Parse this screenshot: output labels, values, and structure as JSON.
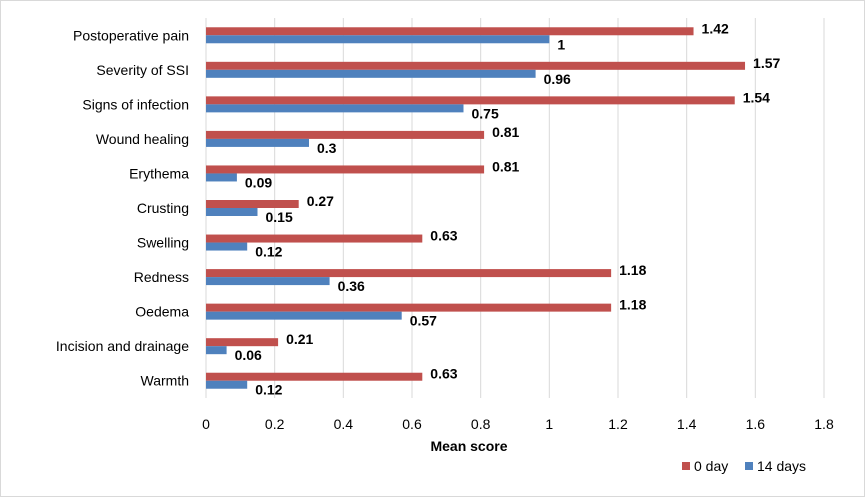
{
  "chart_data": {
    "type": "bar",
    "orientation": "horizontal",
    "title": "",
    "xlabel": "Mean score",
    "ylabel": "",
    "xlim": [
      0,
      1.8
    ],
    "x_ticks": [
      "0",
      "0.2",
      "0.4",
      "0.6",
      "0.8",
      "1",
      "1.2",
      "1.4",
      "1.6",
      "1.8"
    ],
    "x_tick_values": [
      0,
      0.2,
      0.4,
      0.6,
      0.8,
      1.0,
      1.2,
      1.4,
      1.6,
      1.8
    ],
    "grid": "vertical",
    "legend_position": "bottom-right",
    "categories": [
      "Postoperative pain",
      "Severity of SSI",
      "Signs of infection",
      "Wound healing",
      "Erythema",
      "Crusting",
      "Swelling",
      "Redness",
      "Oedema",
      "Incision and drainage",
      "Warmth"
    ],
    "series": [
      {
        "name": "0 day",
        "color": "#c0504d",
        "values": [
          1.42,
          1.57,
          1.54,
          0.81,
          0.81,
          0.27,
          0.63,
          1.18,
          1.18,
          0.21,
          0.63
        ],
        "labels": [
          "1.42",
          "1.57",
          "1.54",
          "0.81",
          "0.81",
          "0.27",
          "0.63",
          "1.18",
          "1.18",
          "0.21",
          "0.63"
        ]
      },
      {
        "name": "14 days",
        "color": "#4f81bd",
        "values": [
          1,
          0.96,
          0.75,
          0.3,
          0.09,
          0.15,
          0.12,
          0.36,
          0.57,
          0.06,
          0.12
        ],
        "labels": [
          "1",
          "0.96",
          "0.75",
          "0.3",
          "0.09",
          "0.15",
          "0.12",
          "0.36",
          "0.57",
          "0.06",
          "0.12"
        ]
      }
    ]
  }
}
